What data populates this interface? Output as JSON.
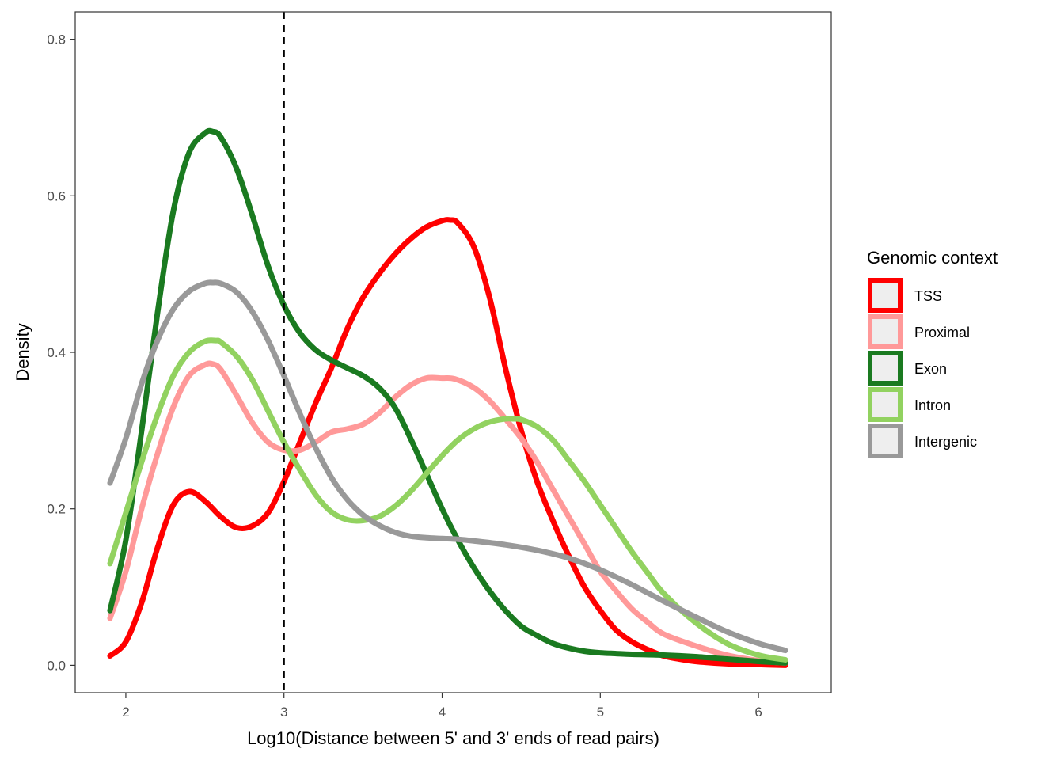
{
  "chart_data": {
    "type": "line",
    "title": "",
    "xlabel": "Log10(Distance between 5' and 3' ends of read pairs)",
    "ylabel": "Density",
    "xlim": [
      1.68,
      6.46
    ],
    "ylim": [
      -0.035,
      0.835
    ],
    "x_ticks": [
      2,
      3,
      4,
      5,
      6
    ],
    "x_tick_labels": [
      "2",
      "3",
      "4",
      "5",
      "6"
    ],
    "y_ticks": [
      0.0,
      0.2,
      0.4,
      0.6,
      0.8
    ],
    "y_tick_labels": [
      "0.0",
      "0.2",
      "0.4",
      "0.6",
      "0.8"
    ],
    "vline": {
      "x": 3,
      "style": "dashed",
      "color": "#000000"
    },
    "grid": false,
    "legend": {
      "title": "Genomic context",
      "position": "right"
    },
    "series": [
      {
        "name": "TSS",
        "color": "#ff0000",
        "x": [
          1.9,
          2.0,
          2.1,
          2.2,
          2.3,
          2.4,
          2.5,
          2.6,
          2.7,
          2.8,
          2.9,
          3.0,
          3.1,
          3.2,
          3.3,
          3.4,
          3.5,
          3.6,
          3.7,
          3.8,
          3.9,
          4.0,
          4.05,
          4.1,
          4.2,
          4.3,
          4.4,
          4.5,
          4.6,
          4.7,
          4.8,
          4.9,
          5.0,
          5.1,
          5.2,
          5.3,
          5.4,
          5.5,
          5.6,
          5.8,
          6.0,
          6.17
        ],
        "y": [
          0.012,
          0.03,
          0.08,
          0.15,
          0.205,
          0.222,
          0.21,
          0.19,
          0.176,
          0.178,
          0.195,
          0.235,
          0.285,
          0.335,
          0.38,
          0.43,
          0.47,
          0.5,
          0.525,
          0.545,
          0.56,
          0.568,
          0.569,
          0.565,
          0.535,
          0.47,
          0.38,
          0.3,
          0.235,
          0.185,
          0.14,
          0.1,
          0.07,
          0.045,
          0.03,
          0.02,
          0.012,
          0.008,
          0.005,
          0.002,
          0.001,
          0.0
        ]
      },
      {
        "name": "Proximal",
        "color": "#ff9999",
        "x": [
          1.9,
          2.0,
          2.1,
          2.2,
          2.3,
          2.4,
          2.5,
          2.55,
          2.6,
          2.7,
          2.8,
          2.9,
          3.0,
          3.1,
          3.2,
          3.3,
          3.4,
          3.5,
          3.6,
          3.7,
          3.8,
          3.9,
          4.0,
          4.08,
          4.2,
          4.3,
          4.4,
          4.5,
          4.6,
          4.7,
          4.8,
          4.9,
          5.0,
          5.1,
          5.2,
          5.3,
          5.4,
          5.6,
          5.8,
          6.0,
          6.17
        ],
        "y": [
          0.06,
          0.12,
          0.2,
          0.27,
          0.33,
          0.37,
          0.384,
          0.385,
          0.378,
          0.345,
          0.31,
          0.285,
          0.275,
          0.275,
          0.285,
          0.298,
          0.302,
          0.308,
          0.322,
          0.342,
          0.358,
          0.367,
          0.367,
          0.366,
          0.355,
          0.338,
          0.315,
          0.29,
          0.26,
          0.225,
          0.19,
          0.155,
          0.12,
          0.095,
          0.072,
          0.055,
          0.04,
          0.025,
          0.013,
          0.006,
          0.003
        ]
      },
      {
        "name": "Exon",
        "color": "#1a7a20",
        "x": [
          1.9,
          2.0,
          2.1,
          2.2,
          2.3,
          2.4,
          2.5,
          2.55,
          2.6,
          2.7,
          2.8,
          2.9,
          3.0,
          3.1,
          3.2,
          3.3,
          3.4,
          3.5,
          3.6,
          3.7,
          3.8,
          3.9,
          4.0,
          4.1,
          4.2,
          4.3,
          4.4,
          4.5,
          4.6,
          4.7,
          4.8,
          4.9,
          5.0,
          5.1,
          5.2,
          5.4,
          5.6,
          5.8,
          6.0,
          6.17
        ],
        "y": [
          0.07,
          0.16,
          0.3,
          0.45,
          0.58,
          0.655,
          0.68,
          0.682,
          0.675,
          0.635,
          0.575,
          0.51,
          0.46,
          0.425,
          0.403,
          0.39,
          0.38,
          0.37,
          0.355,
          0.33,
          0.29,
          0.245,
          0.2,
          0.16,
          0.125,
          0.095,
          0.07,
          0.05,
          0.038,
          0.028,
          0.022,
          0.018,
          0.016,
          0.015,
          0.014,
          0.013,
          0.011,
          0.008,
          0.005,
          0.003
        ]
      },
      {
        "name": "Intron",
        "color": "#92d260",
        "x": [
          1.9,
          2.0,
          2.1,
          2.2,
          2.3,
          2.4,
          2.5,
          2.57,
          2.6,
          2.7,
          2.8,
          2.9,
          3.0,
          3.1,
          3.2,
          3.3,
          3.4,
          3.5,
          3.6,
          3.7,
          3.8,
          3.9,
          4.0,
          4.1,
          4.2,
          4.3,
          4.4,
          4.45,
          4.5,
          4.6,
          4.7,
          4.8,
          4.9,
          5.0,
          5.1,
          5.2,
          5.3,
          5.4,
          5.6,
          5.8,
          6.0,
          6.17
        ],
        "y": [
          0.13,
          0.195,
          0.26,
          0.32,
          0.37,
          0.4,
          0.414,
          0.415,
          0.413,
          0.395,
          0.365,
          0.325,
          0.285,
          0.25,
          0.218,
          0.196,
          0.186,
          0.185,
          0.19,
          0.203,
          0.222,
          0.245,
          0.268,
          0.288,
          0.302,
          0.311,
          0.315,
          0.315,
          0.314,
          0.305,
          0.288,
          0.262,
          0.235,
          0.205,
          0.175,
          0.145,
          0.118,
          0.092,
          0.055,
          0.028,
          0.013,
          0.007
        ]
      },
      {
        "name": "Intergenic",
        "color": "#999999",
        "x": [
          1.9,
          2.0,
          2.1,
          2.2,
          2.3,
          2.4,
          2.5,
          2.55,
          2.6,
          2.7,
          2.8,
          2.9,
          3.0,
          3.1,
          3.2,
          3.3,
          3.4,
          3.5,
          3.6,
          3.7,
          3.8,
          3.9,
          4.0,
          4.1,
          4.2,
          4.4,
          4.6,
          4.8,
          5.0,
          5.2,
          5.4,
          5.6,
          5.8,
          6.0,
          6.17
        ],
        "y": [
          0.233,
          0.29,
          0.36,
          0.415,
          0.455,
          0.478,
          0.488,
          0.489,
          0.488,
          0.477,
          0.452,
          0.415,
          0.37,
          0.322,
          0.278,
          0.24,
          0.212,
          0.192,
          0.179,
          0.17,
          0.165,
          0.163,
          0.162,
          0.161,
          0.159,
          0.154,
          0.147,
          0.137,
          0.122,
          0.103,
          0.082,
          0.062,
          0.043,
          0.028,
          0.019
        ]
      }
    ]
  }
}
